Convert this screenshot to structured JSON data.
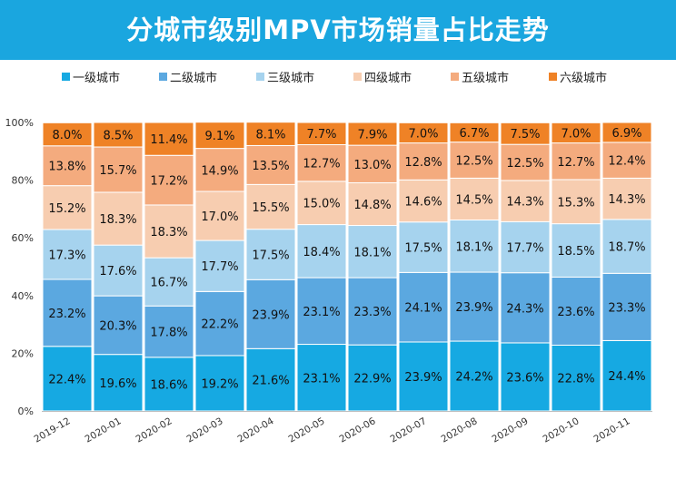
{
  "title": "分城市级别MPV市场销量占比走势",
  "chart_data": {
    "type": "bar",
    "stacked": true,
    "percent": true,
    "title": "分城市级别MPV市场销量占比走势",
    "categories": [
      "2019-12",
      "2020-01",
      "2020-02",
      "2020-03",
      "2020-04",
      "2020-05",
      "2020-06",
      "2020-07",
      "2020-08",
      "2020-09",
      "2020-10",
      "2020-11"
    ],
    "series": [
      {
        "name": "一级城市",
        "color": "#16a9e2",
        "values": [
          22.4,
          19.6,
          18.6,
          19.2,
          21.6,
          23.1,
          22.9,
          23.9,
          24.2,
          23.6,
          22.8,
          24.4
        ]
      },
      {
        "name": "二级城市",
        "color": "#5ba8e0",
        "values": [
          23.2,
          20.3,
          17.8,
          22.2,
          23.9,
          23.1,
          23.3,
          24.1,
          23.9,
          24.3,
          23.6,
          23.3
        ]
      },
      {
        "name": "三级城市",
        "color": "#a6d3ee",
        "values": [
          17.3,
          17.6,
          16.7,
          17.7,
          17.5,
          18.4,
          18.1,
          17.5,
          18.1,
          17.7,
          18.5,
          18.7
        ]
      },
      {
        "name": "四级城市",
        "color": "#f7cdb0",
        "values": [
          15.2,
          18.3,
          18.3,
          17.0,
          15.5,
          15.0,
          14.8,
          14.6,
          14.5,
          14.3,
          15.3,
          14.3
        ]
      },
      {
        "name": "五级城市",
        "color": "#f4ab7e",
        "values": [
          13.8,
          15.7,
          17.2,
          14.9,
          13.5,
          12.7,
          13.0,
          12.8,
          12.5,
          12.5,
          12.7,
          12.4
        ]
      },
      {
        "name": "六级城市",
        "color": "#ef8226",
        "values": [
          8.0,
          8.5,
          11.4,
          9.1,
          8.1,
          7.7,
          7.9,
          7.0,
          6.7,
          7.5,
          7.0,
          6.9
        ]
      }
    ],
    "ylim": [
      0,
      100
    ],
    "yticks": [
      "0%",
      "20%",
      "40%",
      "60%",
      "80%",
      "100%"
    ],
    "xlabel": "",
    "ylabel": "",
    "legend": "top"
  }
}
